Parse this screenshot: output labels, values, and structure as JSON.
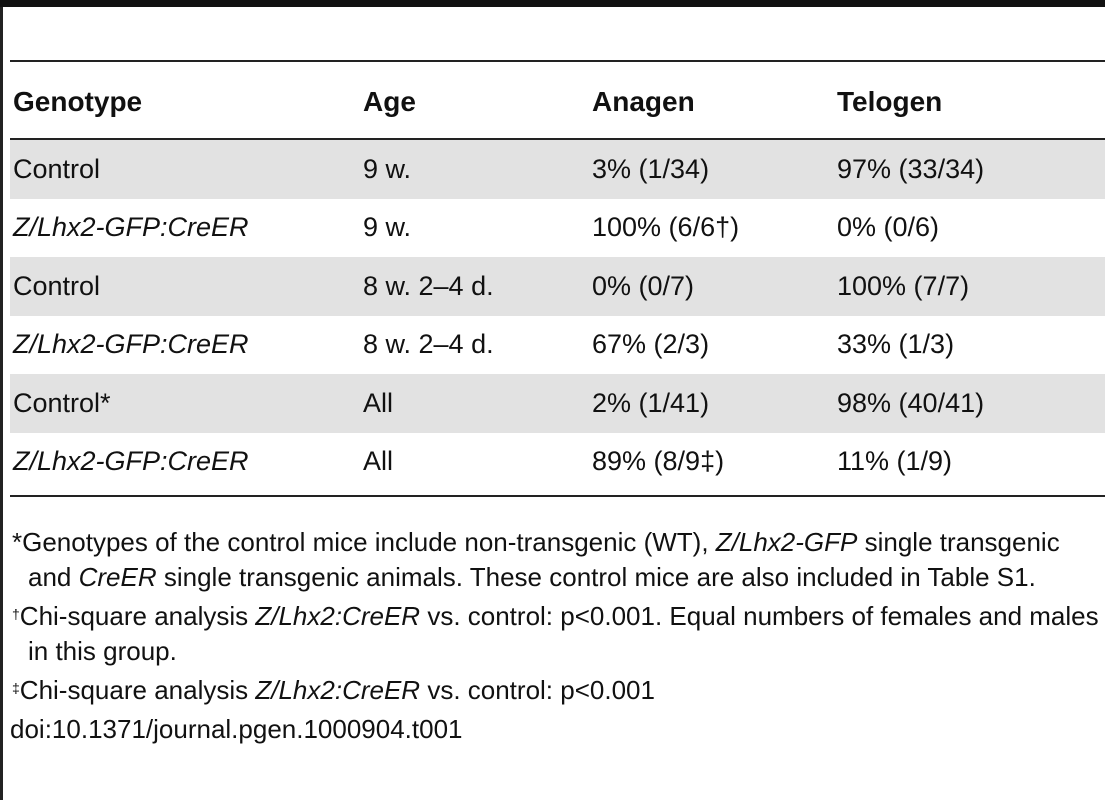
{
  "table": {
    "headers": [
      "Genotype",
      "Age",
      "Anagen",
      "Telogen"
    ],
    "rows": [
      {
        "genotype": "Control",
        "genotype_italic": false,
        "age": "9 w.",
        "anagen": "3% (1/34)",
        "telogen": "97% (33/34)"
      },
      {
        "genotype": "Z/Lhx2-GFP:CreER",
        "genotype_italic": true,
        "age": "9 w.",
        "anagen": "100% (6/6†)",
        "telogen": "0% (0/6)"
      },
      {
        "genotype": "Control",
        "genotype_italic": false,
        "age": "8 w. 2–4 d.",
        "anagen": "0% (0/7)",
        "telogen": "100% (7/7)"
      },
      {
        "genotype": "Z/Lhx2-GFP:CreER",
        "genotype_italic": true,
        "age": "8 w. 2–4 d.",
        "anagen": "67% (2/3)",
        "telogen": "33% (1/3)"
      },
      {
        "genotype": "Control*",
        "genotype_italic": false,
        "age": "All",
        "anagen": "2% (1/41)",
        "telogen": "98% (40/41)"
      },
      {
        "genotype": "Z/Lhx2-GFP:CreER",
        "genotype_italic": true,
        "age": "All",
        "anagen": "89% (8/9‡)",
        "telogen": "11% (1/9)"
      }
    ]
  },
  "footnotes": {
    "star": {
      "marker": "*",
      "t1": "Genotypes of the control mice include non-transgenic (WT), ",
      "i1": "Z/Lhx2-GFP",
      "t2": " single transgenic and ",
      "i2": "CreER",
      "t3": " single transgenic animals. These control mice are also included in Table S1."
    },
    "dagger": {
      "marker": "†",
      "t1": "Chi-square analysis ",
      "i1": "Z/Lhx2:CreER",
      "t2": " vs. control: p<0.001. Equal numbers of females and males in this group."
    },
    "ddagger": {
      "marker": "‡",
      "t1": "Chi-square analysis ",
      "i1": "Z/Lhx2:CreER",
      "t2": " vs. control: p<0.001"
    }
  },
  "doi": "doi:10.1371/journal.pgen.1000904.t001"
}
